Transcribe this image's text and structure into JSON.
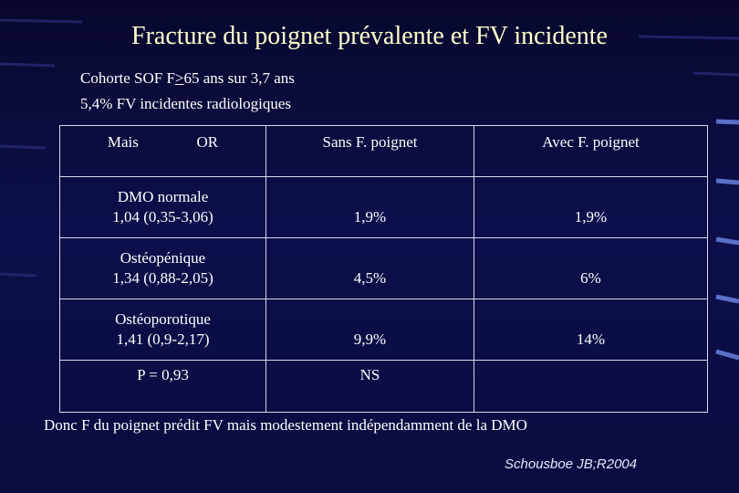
{
  "title": "Fracture du poignet prévalente et FV incidente",
  "intro": {
    "line1": [
      "Cohorte SOF  F",
      ">",
      "65 ans sur 3,7 ans"
    ],
    "line2": "5,4%  FV incidentes radiologiques"
  },
  "table": {
    "header": {
      "col1": [
        "Mais",
        "OR"
      ],
      "col2": "Sans F. poignet",
      "col3": "Avec F. poignet"
    },
    "rows": [
      [
        [
          "DMO normale",
          "1,04 (0,35-3,06)"
        ],
        "1,9%",
        "1,9%"
      ],
      [
        [
          "Ostéopénique",
          "1,34 (0,88-2,05)"
        ],
        "4,5%",
        "6%"
      ],
      [
        [
          "Ostéoporotique",
          "1,41 (0,9-2,17)"
        ],
        "9,9%",
        "14%"
      ],
      [
        [
          "P = 0,93"
        ],
        "NS",
        null
      ]
    ]
  },
  "conclusion": "Donc F du poignet prédit FV mais modestement indépendamment de la DMO",
  "citation": "Schousboe JB;R2004"
}
